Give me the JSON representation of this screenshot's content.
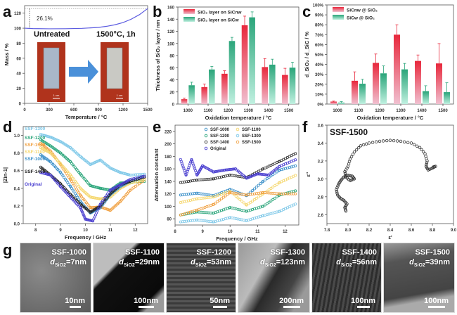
{
  "panels": {
    "a": "a",
    "b": "b",
    "c": "c",
    "d": "d",
    "e": "e",
    "f": "f",
    "g": "g"
  },
  "chart_data": [
    {
      "id": "a",
      "type": "line",
      "xlabel": "Temperature / °C",
      "ylabel": "Mass / %",
      "xlim": [
        0,
        1500
      ],
      "ylim": [
        0,
        130
      ],
      "xticks": [
        0,
        300,
        600,
        900,
        1200,
        1500
      ],
      "yticks": [
        0,
        20,
        40,
        60,
        80,
        100,
        120
      ],
      "x": [
        0,
        100,
        300,
        500,
        700,
        900,
        1000,
        1100,
        1200,
        1300,
        1400,
        1500
      ],
      "y": [
        100,
        99.5,
        99.2,
        99.3,
        99.8,
        101,
        102.5,
        104.5,
        107.5,
        112,
        118,
        126.1
      ],
      "annotation": "26.1%",
      "inset_labels": [
        "Untreated",
        "1500°C,  1h"
      ],
      "inset_scale": "1 cm"
    },
    {
      "id": "b",
      "type": "bar",
      "xlabel": "Oxidation temperature / °C",
      "ylabel": "Thickness of SiO₂ layer / nm",
      "categories": [
        "1000",
        "1100",
        "1200",
        "1300",
        "1400",
        "1500"
      ],
      "ylim": [
        0,
        160
      ],
      "yticks": [
        0,
        20,
        40,
        60,
        80,
        100,
        120,
        140,
        160
      ],
      "series": [
        {
          "name": "SiO₂ layer on SiCnw",
          "color": "#e8283c",
          "values": [
            8,
            28,
            50,
            130,
            61,
            48
          ],
          "errors": [
            2,
            5,
            5,
            15,
            14,
            11
          ]
        },
        {
          "name": "SiO₂ layer on SiCw",
          "color": "#2aa57a",
          "values": [
            31,
            57,
            104,
            143,
            65,
            60
          ],
          "errors": [
            5,
            5,
            6,
            9,
            9,
            9
          ]
        }
      ]
    },
    {
      "id": "c",
      "type": "bar",
      "xlabel": "Oxidation temperature / °C",
      "ylabel": "d_SiO₂ / d_SiC / %",
      "categories": [
        "1000",
        "1100",
        "1200",
        "1300",
        "1400",
        "1500"
      ],
      "ylim": [
        0,
        100
      ],
      "yticks": [
        "0%",
        "10%",
        "20%",
        "30%",
        "40%",
        "50%",
        "60%",
        "70%",
        "80%",
        "90%",
        "100%"
      ],
      "series": [
        {
          "name": "SiCnw @ SiO₂",
          "color": "#e8283c",
          "values": [
            2.5,
            23.5,
            41.5,
            70,
            43.5,
            41
          ],
          "errors": [
            0.5,
            9,
            9,
            10,
            6,
            20
          ]
        },
        {
          "name": "SiCw @ SiO₂",
          "color": "#2aa57a",
          "values": [
            1.5,
            20.5,
            31,
            35,
            13,
            12
          ],
          "errors": [
            1,
            4.5,
            7.5,
            6,
            5.5,
            9.5
          ]
        }
      ]
    },
    {
      "id": "d",
      "type": "scatter",
      "xlabel": "Frequency / GHz",
      "ylabel": "|Zin-1|",
      "xlim": [
        7.5,
        12.5
      ],
      "ylim": [
        0,
        1.1
      ],
      "xticks": [
        8,
        9,
        10,
        11,
        12
      ],
      "yticks": [
        0.0,
        0.2,
        0.4,
        0.6,
        0.8,
        1.0
      ],
      "series": [
        {
          "name": "SSF-1300",
          "color": "#7ec8e8",
          "x": [
            8.2,
            8.6,
            9.0,
            9.4,
            9.8,
            10.2,
            10.6,
            11.0,
            11.4,
            11.8,
            12.4
          ],
          "y": [
            1.01,
            0.98,
            0.93,
            0.86,
            0.76,
            0.67,
            0.72,
            0.63,
            0.58,
            0.55,
            0.56
          ]
        },
        {
          "name": "SSF-1200",
          "color": "#2aa57a",
          "x": [
            8.2,
            8.6,
            9.0,
            9.4,
            9.8,
            10.2,
            10.6,
            11.0,
            11.4,
            11.8,
            12.4
          ],
          "y": [
            0.95,
            0.88,
            0.8,
            0.7,
            0.56,
            0.43,
            0.4,
            0.38,
            0.46,
            0.47,
            0.48
          ]
        },
        {
          "name": "SSF-1500",
          "color": "#f0a040",
          "x": [
            8.2,
            8.6,
            9.0,
            9.4,
            9.8,
            10.2,
            10.6,
            11.0,
            11.4,
            11.8,
            12.4
          ],
          "y": [
            0.91,
            0.82,
            0.67,
            0.5,
            0.32,
            0.18,
            0.19,
            0.15,
            0.25,
            0.38,
            0.5
          ]
        },
        {
          "name": "SSF-1100",
          "color": "#f5d76e",
          "x": [
            8.2,
            8.6,
            9.0,
            9.4,
            9.8,
            10.2,
            10.6,
            11.0,
            11.4,
            11.8,
            12.4
          ],
          "y": [
            0.86,
            0.8,
            0.68,
            0.55,
            0.4,
            0.3,
            0.28,
            0.3,
            0.4,
            0.46,
            0.5
          ]
        },
        {
          "name": "SSF-1000",
          "color": "#3a8fc8",
          "x": [
            8.2,
            8.6,
            9.0,
            9.4,
            9.8,
            10.2,
            10.6,
            11.0,
            11.4,
            11.8,
            12.4
          ],
          "y": [
            0.78,
            0.7,
            0.58,
            0.42,
            0.25,
            0.12,
            0.18,
            0.33,
            0.42,
            0.48,
            0.54
          ]
        },
        {
          "name": "SSF-1400",
          "color": "#222222",
          "x": [
            8.2,
            8.6,
            9.0,
            9.4,
            9.8,
            10.2,
            10.6,
            11.0,
            11.4,
            11.8,
            12.4
          ],
          "y": [
            0.64,
            0.55,
            0.45,
            0.33,
            0.22,
            0.13,
            0.2,
            0.34,
            0.44,
            0.48,
            0.53
          ]
        },
        {
          "name": "Original",
          "color": "#4a3fd0",
          "x": [
            8.2,
            8.6,
            9.0,
            9.4,
            9.8,
            10.0,
            10.3,
            10.6,
            11.0,
            11.4,
            11.8,
            12.4
          ],
          "y": [
            0.58,
            0.55,
            0.42,
            0.3,
            0.18,
            0.05,
            0.03,
            0.22,
            0.38,
            0.44,
            0.5,
            0.54
          ]
        }
      ]
    },
    {
      "id": "e",
      "type": "scatter",
      "xlabel": "Frequency / GHz",
      "ylabel": "Attenuation constant",
      "xlim": [
        8,
        12.5
      ],
      "ylim": [
        70,
        230
      ],
      "xticks": [
        8,
        9,
        10,
        11,
        12
      ],
      "yticks": [
        80,
        100,
        120,
        140,
        160,
        180,
        200,
        220
      ],
      "legend": [
        "SSF-1000",
        "SSF-1100",
        "SSF-1200",
        "SSF-1300",
        "SSF-1400",
        "SSF-1500",
        "Original"
      ],
      "series": [
        {
          "name": "SSF-1000",
          "color": "#3a8fc8",
          "x": [
            8.2,
            8.8,
            9.4,
            10.0,
            10.6,
            11.2,
            11.8,
            12.4
          ],
          "y": [
            118,
            121,
            117,
            127,
            117,
            140,
            158,
            165
          ]
        },
        {
          "name": "SSF-1100",
          "color": "#f5d76e",
          "x": [
            8.2,
            8.8,
            9.4,
            10.0,
            10.6,
            11.2,
            11.8,
            12.4
          ],
          "y": [
            106,
            112,
            115,
            124,
            102,
            120,
            138,
            150
          ]
        },
        {
          "name": "SSF-1200",
          "color": "#2aa57a",
          "x": [
            8.2,
            8.8,
            9.4,
            10.0,
            10.6,
            11.2,
            11.8,
            12.4
          ],
          "y": [
            86,
            91,
            89,
            98,
            92,
            100,
            118,
            125
          ]
        },
        {
          "name": "SSF-1300",
          "color": "#7ec8e8",
          "x": [
            8.2,
            8.8,
            9.4,
            10.0,
            10.6,
            11.2,
            11.8,
            12.4
          ],
          "y": [
            75,
            78,
            75,
            82,
            77,
            85,
            92,
            104
          ]
        },
        {
          "name": "SSF-1400",
          "color": "#333333",
          "x": [
            8.2,
            8.8,
            9.4,
            10.0,
            10.6,
            11.2,
            11.8,
            12.4
          ],
          "y": [
            138,
            142,
            144,
            150,
            146,
            160,
            172,
            185
          ]
        },
        {
          "name": "SSF-1500",
          "color": "#f0a040",
          "x": [
            8.2,
            8.8,
            9.4,
            10.0,
            10.6,
            11.2,
            11.8,
            12.4
          ],
          "y": [
            86,
            94,
            103,
            122,
            118,
            122,
            120,
            120
          ]
        },
        {
          "name": "Original",
          "color": "#4a3fd0",
          "x": [
            8.2,
            8.4,
            8.6,
            8.8,
            9.0,
            9.4,
            9.8,
            10.2,
            10.6,
            11.0,
            11.4,
            11.8,
            12.4
          ],
          "y": [
            175,
            150,
            175,
            150,
            165,
            155,
            158,
            160,
            145,
            152,
            150,
            164,
            175
          ]
        }
      ]
    },
    {
      "id": "f",
      "type": "scatter",
      "title": "SSF-1500",
      "xlabel": "ε'",
      "ylabel": "ε''",
      "xlim": [
        7.8,
        9.0
      ],
      "ylim": [
        2.5,
        3.6
      ],
      "xticks": [
        7.8,
        8.0,
        8.2,
        8.4,
        8.6,
        8.8,
        9.0
      ],
      "yticks": [
        2.6,
        2.8,
        3.0,
        3.2,
        3.4,
        3.6
      ],
      "x": [
        7.98,
        7.97,
        7.99,
        7.96,
        7.93,
        7.9,
        7.89,
        7.91,
        7.93,
        7.96,
        8.0,
        8.04,
        8.06,
        8.02,
        7.98,
        7.97,
        8.0,
        8.02,
        8.06,
        8.12,
        8.2,
        8.3,
        8.4,
        8.5,
        8.6,
        8.68,
        8.73,
        8.75,
        8.74,
        8.76,
        8.8,
        8.83,
        8.8
      ],
      "y": [
        2.64,
        2.68,
        2.72,
        2.76,
        2.78,
        2.82,
        2.88,
        2.94,
        2.98,
        3.02,
        3.04,
        3.03,
        3.0,
        2.98,
        3.02,
        3.08,
        3.14,
        3.22,
        3.3,
        3.37,
        3.4,
        3.42,
        3.43,
        3.42,
        3.4,
        3.35,
        3.28,
        3.2,
        3.14,
        3.1,
        3.12,
        3.14,
        3.13
      ]
    }
  ],
  "tem_images": [
    {
      "label": "SSF-1000",
      "thickness": "=7nm",
      "scale": "10nm"
    },
    {
      "label": "SSF-1100",
      "thickness": "=29nm",
      "scale": "100nm"
    },
    {
      "label": "SSF-1200",
      "thickness": "=53nm",
      "scale": "50nm"
    },
    {
      "label": "SSF-1300",
      "thickness": "=123nm",
      "scale": "200nm"
    },
    {
      "label": "SSF-1400",
      "thickness": "=56nm",
      "scale": "100nm"
    },
    {
      "label": "SSF-1500",
      "thickness": "=39nm",
      "scale": "100nm"
    }
  ],
  "tem_symbol": "d",
  "tem_sub": "SiO2"
}
